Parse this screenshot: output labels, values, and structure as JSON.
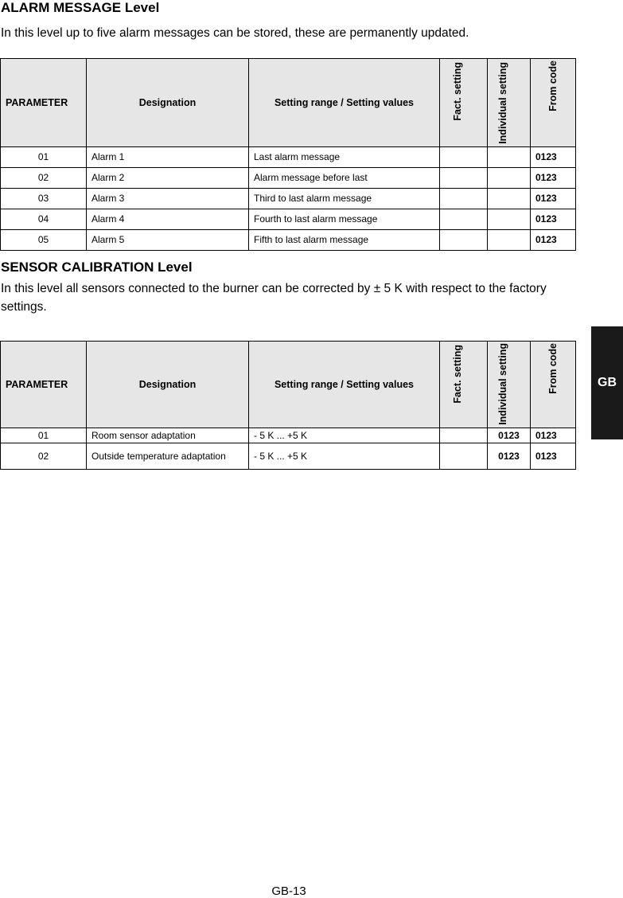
{
  "alarm": {
    "title": "ALARM MESSAGE Level",
    "intro": "In this level up to five alarm messages can be stored, these are permanently updated.",
    "headers": [
      "PARAMETER",
      "Designation",
      "Setting range / Setting values",
      "Fact. setting",
      "Individual setting",
      "From code"
    ],
    "rows": [
      {
        "param": "01",
        "designation": "Alarm 1",
        "range": "Last alarm message",
        "fact": "",
        "individual": "",
        "code": "0123"
      },
      {
        "param": "02",
        "designation": "Alarm 2",
        "range": "Alarm message before last",
        "fact": "",
        "individual": "",
        "code": "0123"
      },
      {
        "param": "03",
        "designation": "Alarm 3",
        "range": "Third to last alarm message",
        "fact": "",
        "individual": "",
        "code": "0123"
      },
      {
        "param": "04",
        "designation": "Alarm 4",
        "range": "Fourth to last alarm message",
        "fact": "",
        "individual": "",
        "code": "0123"
      },
      {
        "param": "05",
        "designation": "Alarm 5",
        "range": "Fifth to last alarm message",
        "fact": "",
        "individual": "",
        "code": "0123"
      }
    ]
  },
  "sensor": {
    "title": "SENSOR CALIBRATION Level",
    "intro": "In this level all sensors connected to the burner can be corrected by ± 5 K with respect to the factory settings.",
    "headers": [
      "PARAMETER",
      "Designation",
      "Setting range / Setting values",
      "Fact. setting",
      "Individual setting",
      "From code"
    ],
    "rows": [
      {
        "param": "01",
        "designation": "Room sensor adaptation",
        "range": "- 5 K ... +5 K",
        "fact": "",
        "individual": "0123",
        "code": "0123"
      },
      {
        "param": "02",
        "designation": "Outside temperature adaptation",
        "range": "- 5 K ... +5 K",
        "fact": "",
        "individual": "0123",
        "code": "0123"
      }
    ]
  },
  "side_tab": "GB",
  "page_number": "GB-13"
}
